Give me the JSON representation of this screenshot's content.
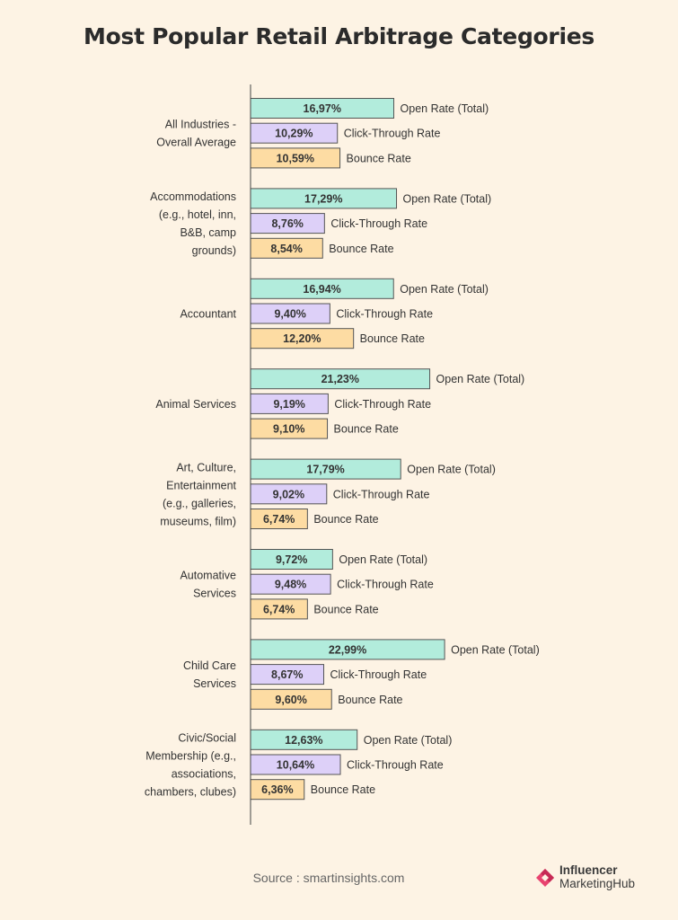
{
  "title": "Most Popular Retail Arbitrage Categories",
  "source": "Source : smartinsights.com",
  "logo": {
    "line1": "Influencer",
    "line2": "MarketingHub"
  },
  "colors": {
    "open_rate": "#b2ecdc",
    "click_through": "#ddd0f8",
    "bounce": "#fddca3",
    "bar_border": "#555555",
    "axis": "#444444",
    "background": "#fdf3e4",
    "logo_mark": "#e8436f"
  },
  "chart_data": {
    "type": "bar",
    "orientation": "horizontal",
    "categories": [
      [
        "All Industries -",
        "Overall Average"
      ],
      [
        "Accommodations",
        "(e.g., hotel, inn,",
        "B&B, camp",
        "grounds)"
      ],
      [
        "Accountant"
      ],
      [
        "Animal Services"
      ],
      [
        "Art, Culture,",
        "Entertainment",
        "(e.g., galleries,",
        "museums, film)"
      ],
      [
        "Automative",
        "Services"
      ],
      [
        "Child Care",
        "Services"
      ],
      [
        "Civic/Social",
        "Membership (e.g.,",
        "associations,",
        "chambers, clubes)"
      ]
    ],
    "series": [
      {
        "name": "Open Rate (Total)",
        "values": [
          16.97,
          17.29,
          16.94,
          21.23,
          17.79,
          9.72,
          22.99,
          12.63
        ],
        "labels": [
          "16,97%",
          "17,29%",
          "16,94%",
          "21,23%",
          "17,79%",
          "9,72%",
          "22,99%",
          "12,63%"
        ]
      },
      {
        "name": "Click-Through Rate",
        "values": [
          10.29,
          8.76,
          9.4,
          9.19,
          9.02,
          9.48,
          8.67,
          10.64
        ],
        "labels": [
          "10,29%",
          "8,76%",
          "9,40%",
          "9,19%",
          "9,02%",
          "9,48%",
          "8,67%",
          "10,64%"
        ]
      },
      {
        "name": "Bounce Rate",
        "values": [
          10.59,
          8.54,
          12.2,
          9.1,
          6.74,
          6.74,
          9.6,
          6.36
        ],
        "labels": [
          "10,59%",
          "8,54%",
          "12,20%",
          "9,10%",
          "6,74%",
          "6,74%",
          "9,60%",
          "6,36%"
        ]
      }
    ],
    "xlim": [
      0,
      23
    ],
    "legend": "inline-right-of-bars"
  }
}
